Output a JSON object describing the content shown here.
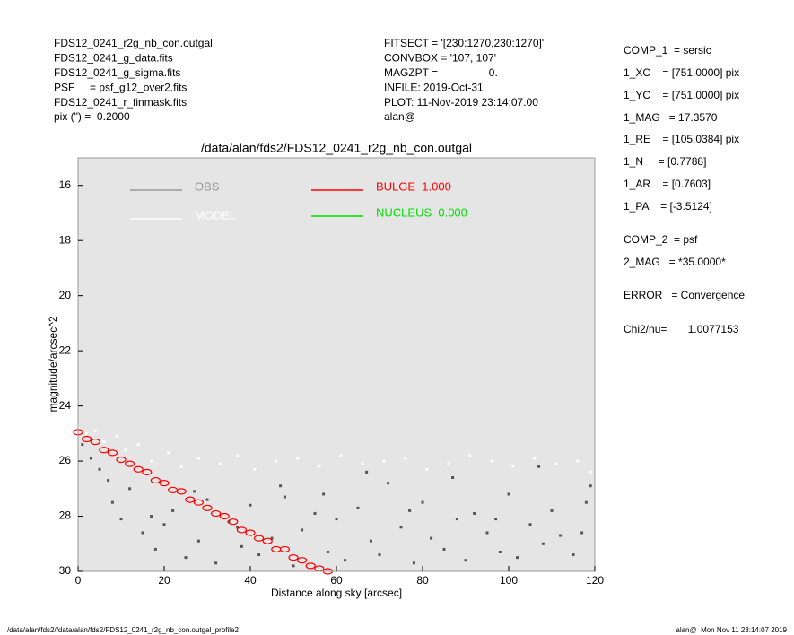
{
  "chart_data": {
    "type": "scatter",
    "title": "/data/alan/fds2/FDS12_0241_r2g_nb_con.outgal",
    "x_label": "Distance along sky [arcsec]",
    "y_label": "magnitude/arcsec^2",
    "xlim": [
      0,
      120
    ],
    "xticks": [
      0,
      20,
      40,
      60,
      80,
      100,
      120
    ],
    "ylim": [
      30,
      15
    ],
    "yticks": [
      16,
      18,
      20,
      22,
      24,
      26,
      28,
      30
    ],
    "background": "#e5e5e5",
    "series": [
      {
        "name": "OBS",
        "color": "#555555",
        "legend_color": "#999999",
        "x": [
          1,
          3,
          5,
          8,
          10,
          12,
          15,
          18,
          20,
          22,
          25,
          28,
          30,
          32,
          35,
          38,
          40,
          42,
          45,
          48,
          50,
          52,
          55,
          58,
          60,
          62,
          65,
          68,
          70,
          72,
          75,
          78,
          80,
          82,
          85,
          88,
          90,
          92,
          95,
          98,
          100,
          102,
          105,
          108,
          110,
          112,
          115,
          118,
          119,
          7,
          27,
          47,
          67,
          87,
          107,
          17,
          37,
          57,
          77,
          97,
          117
        ],
        "values": [
          25.4,
          25.9,
          26.3,
          27.5,
          28.1,
          27.0,
          28.6,
          29.2,
          28.3,
          27.8,
          29.5,
          28.9,
          27.4,
          29.7,
          28.2,
          29.1,
          27.6,
          29.4,
          28.8,
          27.3,
          29.8,
          28.5,
          27.9,
          29.3,
          28.1,
          29.6,
          27.7,
          28.9,
          29.4,
          26.8,
          28.4,
          29.7,
          27.5,
          28.8,
          29.2,
          28.1,
          29.6,
          27.9,
          28.6,
          29.3,
          27.2,
          29.5,
          28.3,
          29.0,
          27.8,
          28.7,
          29.4,
          27.5,
          26.9,
          26.7,
          27.1,
          26.9,
          26.4,
          26.6,
          26.2,
          28.0,
          28.4,
          27.2,
          27.8,
          28.1,
          28.6
        ]
      },
      {
        "name": "MODEL",
        "color": "#ffffff",
        "legend_color": "#ffffff",
        "x": [
          0,
          2,
          4,
          6,
          9,
          11,
          14,
          17,
          21,
          24,
          28,
          33,
          37,
          41,
          46,
          51,
          56,
          61,
          66,
          71,
          76,
          81,
          86,
          91,
          96,
          101,
          106,
          111,
          116,
          119
        ],
        "values": [
          24.8,
          25.0,
          24.9,
          25.3,
          25.1,
          25.6,
          25.4,
          26.0,
          25.7,
          26.2,
          25.9,
          26.1,
          25.8,
          26.3,
          26.0,
          25.9,
          26.2,
          25.8,
          26.1,
          26.0,
          25.9,
          26.3,
          26.1,
          25.8,
          26.0,
          26.2,
          25.9,
          26.1,
          26.0,
          26.4
        ]
      },
      {
        "name": "BULGE  1.000",
        "color": "#ff0000",
        "legend_color": "#ff0000",
        "x": [
          0,
          2,
          4,
          6,
          8,
          10,
          12,
          14,
          16,
          18,
          20,
          22,
          24,
          26,
          28,
          30,
          32,
          34,
          36,
          38,
          40,
          42,
          44,
          46,
          48,
          50,
          52,
          54,
          56,
          58
        ],
        "values": [
          24.95,
          25.2,
          25.3,
          25.6,
          25.7,
          25.95,
          26.1,
          26.3,
          26.4,
          26.7,
          26.8,
          27.05,
          27.1,
          27.4,
          27.5,
          27.7,
          27.9,
          28.0,
          28.2,
          28.5,
          28.6,
          28.8,
          28.9,
          29.2,
          29.2,
          29.5,
          29.6,
          29.8,
          29.9,
          30.0
        ]
      },
      {
        "name": "NUCLEUS  0.000",
        "color": "#00dd00",
        "legend_color": "#00dd00",
        "x": [],
        "values": []
      }
    ],
    "info_left": [
      "FDS12_0241_r2g_nb_con.outgal",
      "FDS12_0241_g_data.fits",
      "FDS12_0241_g_sigma.fits",
      "PSF     = psf_g12_over2.fits",
      "FDS12_0241_r_finmask.fits",
      "pix (\") =  0.2000"
    ],
    "info_middle": [
      "FITSECT = '[230:1270,230:1270]'",
      "CONVBOX = '107, 107'",
      "MAGZPT =                 0.",
      "INFILE: 2019-Oct-31",
      "PLOT: 11-Nov-2019 23:14:07.00",
      "alan@"
    ],
    "info_right": [
      "COMP_1  = sersic",
      "1_XC    = [751.0000] pix",
      "1_YC    = [751.0000] pix",
      "1_MAG   = 17.3570",
      "1_RE    = [105.0384] pix",
      "1_N     = [0.7788]",
      "1_AR    = [0.7603]",
      "1_PA    = [-3.5124]",
      "COMP_2  = psf",
      "2_MAG   = *35.0000*",
      "ERROR   = Convergence",
      "Chi2/nu=       1.0077153"
    ],
    "footer_left": "/data/alan/fds2//data/alan/fds2/FDS12_0241_r2g_nb_con.outgal_profile2",
    "footer_right": "alan@  Mon Nov 11 23:14:07 2019"
  }
}
